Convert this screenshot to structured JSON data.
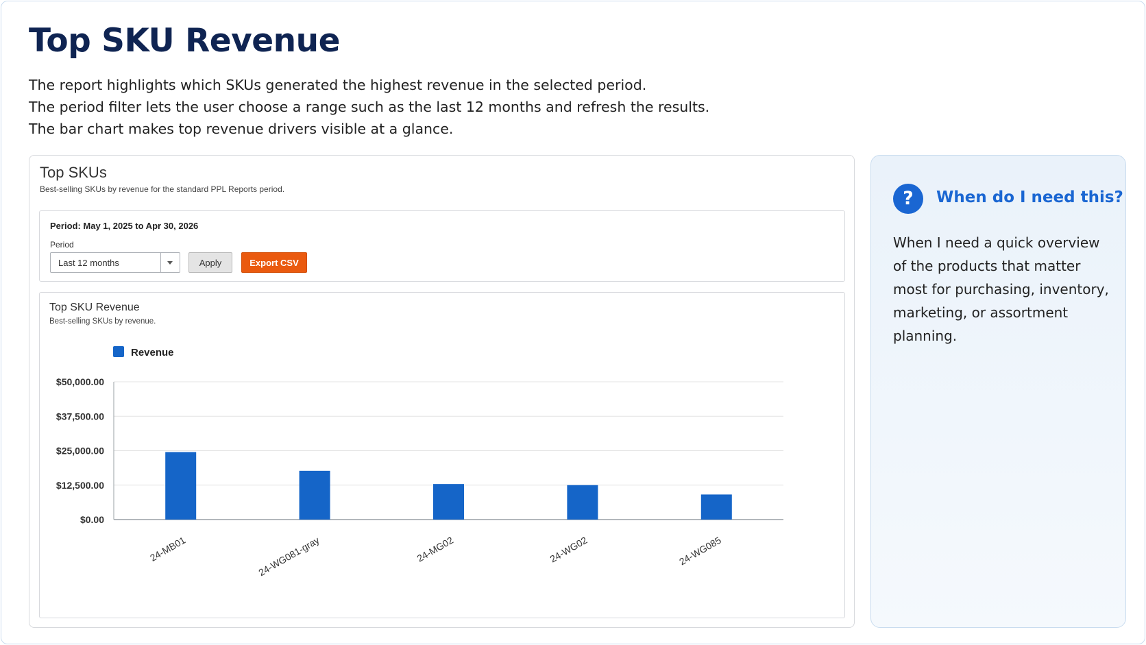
{
  "page": {
    "title": "Top SKU Revenue",
    "intro": [
      "The report highlights which SKUs generated the highest revenue in the selected period.",
      "The period filter lets the user choose a range such as the last 12 months and refresh the results.",
      "The bar chart makes top revenue drivers visible at a glance."
    ]
  },
  "card": {
    "title": "Top SKUs",
    "subtitle": "Best-selling SKUs by revenue for the standard PPL Reports period."
  },
  "filter": {
    "period_text": "Period: May 1, 2025 to Apr 30, 2026",
    "period_label": "Period",
    "selected": "Last 12 months",
    "apply_label": "Apply",
    "export_label": "Export CSV"
  },
  "chart_panel": {
    "title": "Top SKU Revenue",
    "subtitle": "Best-selling SKUs by revenue."
  },
  "chart_data": {
    "type": "bar",
    "categories": [
      "24-MB01",
      "24-WG081-gray",
      "24-MG02",
      "24-WG02",
      "24-WG085"
    ],
    "series": [
      {
        "name": "Revenue",
        "values": [
          24500,
          17700,
          12900,
          12500,
          9100
        ]
      }
    ],
    "yticks": [
      "$0.00",
      "$12,500.00",
      "$25,000.00",
      "$37,500.00",
      "$50,000.00"
    ],
    "ylim": [
      0,
      50000
    ],
    "ylabel": "",
    "xlabel": "",
    "grid": true,
    "legend": "top-left",
    "bar_color": "#1565c8"
  },
  "help": {
    "icon": "question-icon",
    "title": "When do I need this?",
    "text": "When I need a quick overview of the products that matter most for purchasing, inventory, marketing, or assortment planning."
  }
}
